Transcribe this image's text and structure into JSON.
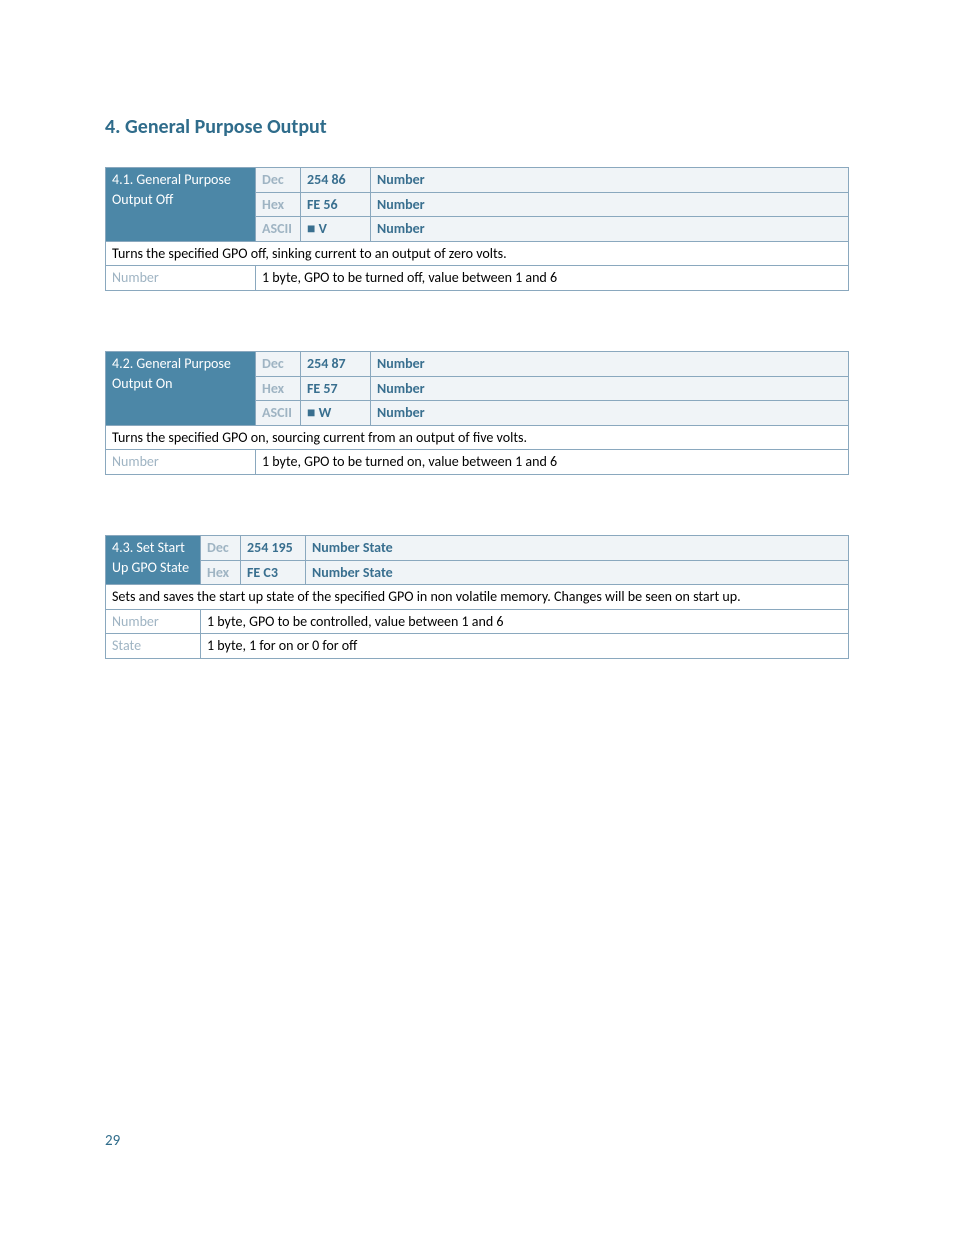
{
  "colors": {
    "accent": "#2f6c8b",
    "header_bg": "#4c87a7",
    "header_text": "#ffffff",
    "sub_bg": "#f0f4f7",
    "label_text": "#9fb4c3",
    "code_text": "#396f8f",
    "border": "#8aa8be",
    "body_text": "#000000",
    "page_bg": "#ffffff"
  },
  "page_number": "29",
  "heading": "4. General Purpose Output",
  "tables": [
    {
      "title": "4.1. General Purpose Output Off",
      "layout": "a",
      "formats": [
        {
          "label": "Dec",
          "code": "254 86",
          "params": "Number"
        },
        {
          "label": "Hex",
          "code": "FE 56",
          "params": "Number"
        },
        {
          "label": "ASCII",
          "code": "■ V",
          "params": "Number"
        }
      ],
      "description": "Turns the specified GPO off, sinking current to an output of zero volts.",
      "params": [
        {
          "name": "Number",
          "desc": "1 byte, GPO to be turned off, value between 1 and 6"
        }
      ]
    },
    {
      "title": "4.2. General Purpose Output On",
      "layout": "a",
      "formats": [
        {
          "label": "Dec",
          "code": "254 87",
          "params": "Number"
        },
        {
          "label": "Hex",
          "code": "FE 57",
          "params": "Number"
        },
        {
          "label": "ASCII",
          "code": "■ W",
          "params": "Number"
        }
      ],
      "description": "Turns the specified GPO on, sourcing current from an output of five volts.",
      "params": [
        {
          "name": "Number",
          "desc": "1 byte, GPO to be turned on, value between 1 and 6"
        }
      ]
    },
    {
      "title": "4.3. Set Start Up GPO State",
      "layout": "b",
      "formats": [
        {
          "label": "Dec",
          "code": "254 195",
          "params": "Number State"
        },
        {
          "label": "Hex",
          "code": "FE C3",
          "params": "Number State"
        }
      ],
      "description": "Sets and saves the start up state of the specified GPO in non volatile memory.  Changes will be seen on start up.",
      "params": [
        {
          "name": "Number",
          "desc": "1 byte, GPO to be controlled, value between 1 and 6"
        },
        {
          "name": "State",
          "desc": "1 byte, 1 for on or 0 for off"
        }
      ]
    }
  ]
}
